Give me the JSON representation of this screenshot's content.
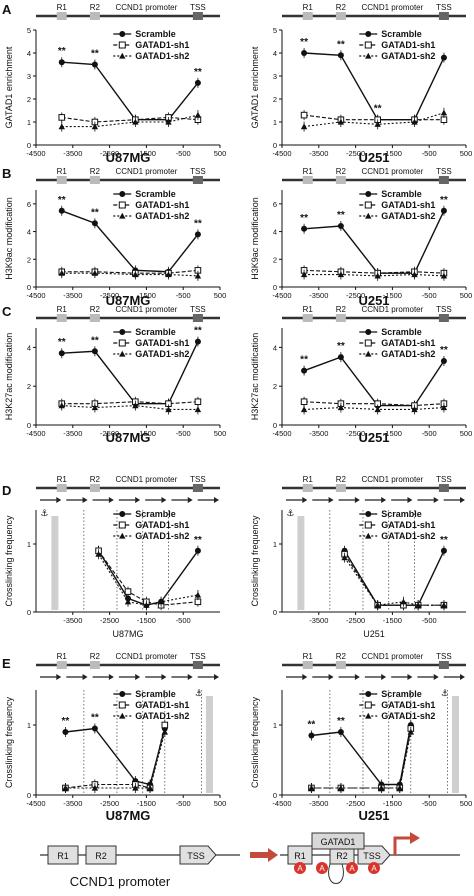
{
  "promoter": {
    "r1": "R1",
    "r2": "R2",
    "name": "CCND1 promoter",
    "tss": "TSS"
  },
  "legend_labels": [
    "Scramble",
    "GATAD1-sh1",
    "GATAD1-sh2"
  ],
  "sig": "**",
  "schematic": {
    "r1": "R1",
    "r2": "R2",
    "tss": "TSS",
    "label": "CCND1 promoter",
    "gatad1": "GATAD1",
    "a": "A"
  },
  "chart_data": [
    {
      "type": "line",
      "panel": "A",
      "cell": "U87MG",
      "ylabel": "GATAD1 enrichment",
      "xlim": [
        -4500,
        500
      ],
      "ylim": [
        0,
        5
      ],
      "xticks": [
        -4500,
        -3500,
        -2500,
        -1500,
        -500,
        500
      ],
      "yticks": [
        0,
        1,
        2,
        3,
        4,
        5
      ],
      "x": [
        -3800,
        -2900,
        -1800,
        -900,
        -100
      ],
      "series": [
        {
          "name": "Scramble",
          "values": [
            3.6,
            3.5,
            1.1,
            1.1,
            2.7
          ]
        },
        {
          "name": "GATAD1-sh1",
          "values": [
            1.2,
            1.0,
            1.1,
            1.2,
            1.1
          ]
        },
        {
          "name": "GATAD1-sh2",
          "values": [
            0.8,
            0.8,
            1.0,
            1.0,
            1.3
          ]
        }
      ],
      "sig_x": [
        -3800,
        -2900,
        -100
      ]
    },
    {
      "type": "line",
      "panel": "",
      "cell": "U251",
      "ylabel": "GATAD1 enrichment",
      "xlim": [
        -4500,
        500
      ],
      "ylim": [
        0,
        5
      ],
      "xticks": [
        -4500,
        -3500,
        -2500,
        -1500,
        -500,
        500
      ],
      "yticks": [
        0,
        1,
        2,
        3,
        4,
        5
      ],
      "x": [
        -3900,
        -2900,
        -1900,
        -900,
        -100
      ],
      "series": [
        {
          "name": "Scramble",
          "values": [
            4.0,
            3.9,
            1.1,
            1.1,
            3.8
          ]
        },
        {
          "name": "GATAD1-sh1",
          "values": [
            1.3,
            1.1,
            1.1,
            1.1,
            1.1
          ]
        },
        {
          "name": "GATAD1-sh2",
          "values": [
            0.8,
            1.0,
            0.9,
            1.0,
            1.4
          ]
        }
      ],
      "sig_x": [
        -3900,
        -2900,
        -1900
      ]
    },
    {
      "type": "line",
      "panel": "B",
      "cell": "U87MG",
      "ylabel": "H3K9ac modification",
      "xlim": [
        -4500,
        500
      ],
      "ylim": [
        0,
        7
      ],
      "xticks": [
        -4500,
        -3500,
        -2500,
        -1500,
        -500,
        500
      ],
      "yticks": [
        0,
        2,
        4,
        6
      ],
      "x": [
        -3800,
        -2900,
        -1800,
        -900,
        -100
      ],
      "series": [
        {
          "name": "Scramble",
          "values": [
            5.5,
            4.6,
            1.2,
            1.1,
            3.8
          ]
        },
        {
          "name": "GATAD1-sh1",
          "values": [
            1.1,
            1.1,
            1.0,
            1.0,
            1.2
          ]
        },
        {
          "name": "GATAD1-sh2",
          "values": [
            1.0,
            1.0,
            0.9,
            0.9,
            0.8
          ]
        }
      ],
      "sig_x": [
        -3800,
        -2900,
        -100
      ]
    },
    {
      "type": "line",
      "panel": "",
      "cell": "U251",
      "ylabel": "H3K9ac modification",
      "xlim": [
        -4500,
        500
      ],
      "ylim": [
        0,
        7
      ],
      "xticks": [
        -4500,
        -3500,
        -2500,
        -1500,
        -500,
        500
      ],
      "yticks": [
        0,
        2,
        4,
        6
      ],
      "x": [
        -3900,
        -2900,
        -1900,
        -900,
        -100
      ],
      "series": [
        {
          "name": "Scramble",
          "values": [
            4.2,
            4.4,
            1.0,
            1.0,
            5.5
          ]
        },
        {
          "name": "GATAD1-sh1",
          "values": [
            1.2,
            1.1,
            1.0,
            1.1,
            1.0
          ]
        },
        {
          "name": "GATAD1-sh2",
          "values": [
            0.9,
            0.9,
            0.8,
            0.9,
            0.8
          ]
        }
      ],
      "sig_x": [
        -3900,
        -2900,
        -100
      ]
    },
    {
      "type": "line",
      "panel": "C",
      "cell": "U87MG",
      "ylabel": "H3K27ac modification",
      "xlim": [
        -4500,
        500
      ],
      "ylim": [
        0,
        5
      ],
      "xticks": [
        -4500,
        -3500,
        -2500,
        -1500,
        -500,
        500
      ],
      "yticks": [
        0,
        2,
        4
      ],
      "x": [
        -3800,
        -2900,
        -1800,
        -900,
        -100
      ],
      "series": [
        {
          "name": "Scramble",
          "values": [
            3.7,
            3.8,
            1.1,
            1.1,
            4.3
          ]
        },
        {
          "name": "GATAD1-sh1",
          "values": [
            1.1,
            1.1,
            1.2,
            1.1,
            1.2
          ]
        },
        {
          "name": "GATAD1-sh2",
          "values": [
            1.0,
            0.9,
            1.0,
            0.8,
            0.8
          ]
        }
      ],
      "sig_x": [
        -3800,
        -2900,
        -100
      ]
    },
    {
      "type": "line",
      "panel": "",
      "cell": "U251",
      "ylabel": "H3K27ac modification",
      "xlim": [
        -4500,
        500
      ],
      "ylim": [
        0,
        5
      ],
      "xticks": [
        -4500,
        -3500,
        -2500,
        -1500,
        -500,
        500
      ],
      "yticks": [
        0,
        2,
        4
      ],
      "x": [
        -3900,
        -2900,
        -1900,
        -900,
        -100
      ],
      "series": [
        {
          "name": "Scramble",
          "values": [
            2.8,
            3.5,
            1.0,
            1.0,
            3.3
          ]
        },
        {
          "name": "GATAD1-sh1",
          "values": [
            1.2,
            1.1,
            1.1,
            1.0,
            1.1
          ]
        },
        {
          "name": "GATAD1-sh2",
          "values": [
            0.8,
            0.9,
            0.8,
            0.8,
            0.9
          ]
        }
      ],
      "sig_x": [
        -3900,
        -2900,
        -100
      ]
    },
    {
      "type": "line",
      "panel": "D",
      "cell": "U87MG",
      "ylabel": "Crosslinking frequency",
      "xlim": [
        -4500,
        500
      ],
      "ylim": [
        0,
        1.5
      ],
      "xticks": [
        -3500,
        -2500,
        -1500,
        -500
      ],
      "yticks": [
        0,
        1
      ],
      "x": [
        -2800,
        -2000,
        -1500,
        -1100,
        -100
      ],
      "series": [
        {
          "name": "Scramble",
          "values": [
            0.9,
            0.2,
            0.1,
            0.15,
            0.9
          ]
        },
        {
          "name": "GATAD1-sh1",
          "values": [
            0.9,
            0.3,
            0.15,
            0.1,
            0.15
          ]
        },
        {
          "name": "GATAD1-sh2",
          "values": [
            0.85,
            0.15,
            0.1,
            0.15,
            0.25
          ]
        }
      ],
      "sig_x": [
        -100
      ]
    },
    {
      "type": "line",
      "panel": "",
      "cell": "U251",
      "ylabel": "Crosslinking frequency",
      "xlim": [
        -4500,
        500
      ],
      "ylim": [
        0,
        1.5
      ],
      "xticks": [
        -3500,
        -2500,
        -1500,
        -500
      ],
      "yticks": [
        0,
        1
      ],
      "x": [
        -2800,
        -1900,
        -1200,
        -800,
        -100
      ],
      "series": [
        {
          "name": "Scramble",
          "values": [
            0.9,
            0.1,
            0.1,
            0.1,
            0.9
          ]
        },
        {
          "name": "GATAD1-sh1",
          "values": [
            0.85,
            0.1,
            0.1,
            0.1,
            0.1
          ]
        },
        {
          "name": "GATAD1-sh2",
          "values": [
            0.8,
            0.1,
            0.15,
            0.1,
            0.1
          ]
        }
      ],
      "sig_x": [
        -100
      ]
    },
    {
      "type": "line",
      "panel": "E",
      "cell": "U87MG",
      "ylabel": "Crosslinking frequency",
      "xlim": [
        -4500,
        500
      ],
      "ylim": [
        0,
        1.5
      ],
      "xticks": [
        -4500,
        -3500,
        -2500,
        -1500,
        -500,
        500
      ],
      "yticks": [
        0,
        1
      ],
      "x": [
        -3700,
        -2900,
        -1800,
        -1400,
        -1000
      ],
      "series": [
        {
          "name": "Scramble",
          "values": [
            0.9,
            0.95,
            0.2,
            0.15,
            0.95
          ]
        },
        {
          "name": "GATAD1-sh1",
          "values": [
            0.1,
            0.15,
            0.15,
            0.1,
            1.0
          ]
        },
        {
          "name": "GATAD1-sh2",
          "values": [
            0.1,
            0.1,
            0.1,
            0.1,
            0.9
          ]
        }
      ],
      "sig_x": [
        -3700,
        -2900
      ]
    },
    {
      "type": "line",
      "panel": "",
      "cell": "U251",
      "ylabel": "Crosslinking frequency",
      "xlim": [
        -4500,
        500
      ],
      "ylim": [
        0,
        1.5
      ],
      "xticks": [
        -4500,
        -3500,
        -2500,
        -1500,
        -500,
        500
      ],
      "yticks": [
        0,
        1
      ],
      "x": [
        -3700,
        -2900,
        -1800,
        -1300,
        -1000
      ],
      "series": [
        {
          "name": "Scramble",
          "values": [
            0.85,
            0.9,
            0.15,
            0.15,
            1.0
          ]
        },
        {
          "name": "GATAD1-sh1",
          "values": [
            0.1,
            0.1,
            0.1,
            0.1,
            0.95
          ]
        },
        {
          "name": "GATAD1-sh2",
          "values": [
            0.1,
            0.1,
            0.1,
            0.1,
            0.9
          ]
        }
      ],
      "sig_x": [
        -3700,
        -2900
      ]
    }
  ]
}
